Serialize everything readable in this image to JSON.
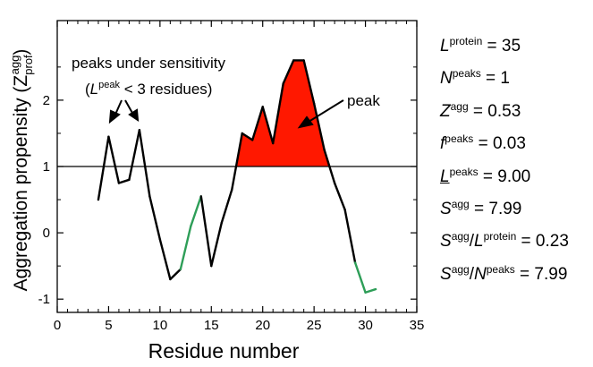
{
  "chart_data": {
    "type": "line",
    "title": "",
    "xlabel": "Residue number",
    "ylabel": {
      "main": "Aggregation propensity (Z",
      "sub": "prof",
      "sup": "agg",
      "close": ")"
    },
    "xlim": [
      0,
      35
    ],
    "ylim": [
      -1.2,
      3.2
    ],
    "xticks": [
      "0",
      "5",
      "10",
      "15",
      "20",
      "25",
      "30",
      "35"
    ],
    "yticks": [
      "-1",
      "0",
      "1",
      "2"
    ],
    "threshold": 1,
    "x": [
      4,
      5,
      6,
      7,
      8,
      9,
      10,
      11,
      12,
      13,
      14,
      15,
      16,
      17,
      18,
      19,
      20,
      21,
      22,
      23,
      24,
      25,
      26,
      27,
      28,
      29,
      30,
      31
    ],
    "y": [
      0.5,
      1.45,
      0.75,
      0.8,
      1.55,
      0.55,
      -0.1,
      -0.7,
      -0.55,
      0.1,
      0.55,
      -0.5,
      0.15,
      0.65,
      1.5,
      1.4,
      1.9,
      1.35,
      2.25,
      2.6,
      2.6,
      1.95,
      1.25,
      0.75,
      0.35,
      -0.45,
      -0.9,
      -0.85
    ],
    "series_colors": {
      "line": "#000000",
      "highlight": "#2e9e58",
      "peak_fill": "#ff1800"
    },
    "highlight_segments": [
      [
        12,
        14
      ],
      [
        29,
        31
      ]
    ],
    "peak_region": [
      17.5,
      26.6
    ],
    "annotations": {
      "under_1": "peaks under sensitivity",
      "under_2_open": "(",
      "under_2_L": "L",
      "under_2_sup": "peak",
      "under_2_rest": " < 3 residues)",
      "peak": "peak"
    }
  },
  "stats": [
    {
      "sym": "L",
      "sup": "protein",
      "suffix": "",
      "value": " = 35",
      "underline": false
    },
    {
      "sym": "N",
      "sup": "peaks",
      "suffix": "",
      "value": " = 1",
      "underline": false
    },
    {
      "sym": "Z",
      "sup": "agg",
      "suffix": "",
      "value": " = 0.53",
      "underline": false
    },
    {
      "sym": "f",
      "sup": "peaks",
      "suffix": "",
      "value": " = 0.03",
      "underline": false
    },
    {
      "sym": "L",
      "sup": "peaks",
      "suffix": "",
      "value": " = 9.00",
      "underline": true
    },
    {
      "sym": "S",
      "sup": "agg",
      "suffix": "",
      "value": " = 7.99",
      "underline": false
    },
    {
      "sym": "S",
      "sup": "agg",
      "suffix": "/",
      "sym2": "L",
      "sup2": "protein",
      "value": " = 0.23",
      "underline": false
    },
    {
      "sym": "S",
      "sup": "agg",
      "suffix": "/",
      "sym2": "N",
      "sup2": "peaks",
      "value": " = 7.99",
      "underline": false
    }
  ]
}
